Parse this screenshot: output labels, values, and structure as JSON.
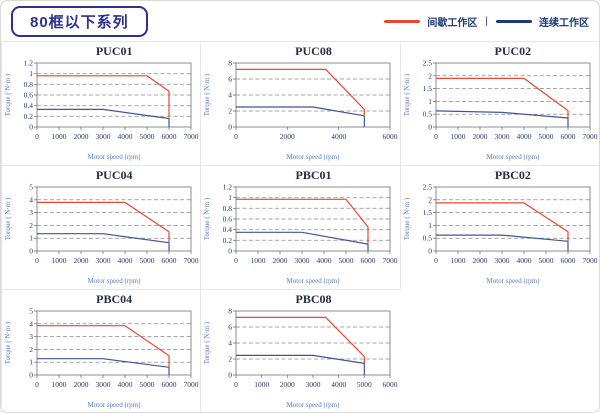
{
  "header": {
    "badge": "80框以下系列",
    "legend": {
      "items": [
        {
          "label": "间歇工作区",
          "color": "#e8492e"
        },
        {
          "label": "连续工作区",
          "color": "#1f3a78"
        }
      ],
      "separator": "|"
    }
  },
  "chart_data": [
    {
      "type": "line",
      "title": "PUC01",
      "xlabel": "Motor speed (rpm)",
      "ylabel": "Torque ( N·m )",
      "xlim": [
        0,
        7000
      ],
      "ylim": [
        0,
        1.2
      ],
      "xticks": [
        0,
        1000,
        2000,
        3000,
        4000,
        5000,
        6000,
        7000
      ],
      "yticks": [
        0,
        0.2,
        0.4,
        0.6,
        0.8,
        1,
        1.2
      ],
      "grid": "horizontal-dashed",
      "legend_position": "none",
      "series": [
        {
          "name": "间歇工作区",
          "color": "#e8492e",
          "points": [
            [
              0,
              0.96
            ],
            [
              5000,
              0.96
            ],
            [
              6000,
              0.67
            ],
            [
              6000,
              0.18
            ]
          ]
        },
        {
          "name": "连续工作区",
          "color": "#41549b",
          "points": [
            [
              0,
              0.33
            ],
            [
              3000,
              0.33
            ],
            [
              6000,
              0.16
            ],
            [
              6000,
              0
            ]
          ]
        }
      ]
    },
    {
      "type": "line",
      "title": "PUC08",
      "xlabel": "Motor speed (rpm)",
      "ylabel": "Torque ( N·m )",
      "xlim": [
        0,
        6000
      ],
      "ylim": [
        0,
        8
      ],
      "xticks": [
        0,
        2000,
        4000,
        6000
      ],
      "yticks": [
        0,
        2,
        4,
        6,
        8
      ],
      "grid": "horizontal-dashed",
      "legend_position": "none",
      "series": [
        {
          "name": "间歇工作区",
          "color": "#e8492e",
          "points": [
            [
              0,
              7.2
            ],
            [
              3500,
              7.2
            ],
            [
              5000,
              2.2
            ],
            [
              5000,
              1.5
            ]
          ]
        },
        {
          "name": "连续工作区",
          "color": "#41549b",
          "points": [
            [
              0,
              2.5
            ],
            [
              3000,
              2.5
            ],
            [
              5000,
              1.4
            ],
            [
              5000,
              0
            ]
          ]
        }
      ]
    },
    {
      "type": "line",
      "title": "PUC02",
      "xlabel": "Motor speed (rpm)",
      "ylabel": "Torque ( N·m )",
      "xlim": [
        0,
        7000
      ],
      "ylim": [
        0,
        2.5
      ],
      "xticks": [
        0,
        1000,
        2000,
        3000,
        4000,
        5000,
        6000,
        7000
      ],
      "yticks": [
        0,
        0.5,
        1,
        1.5,
        2,
        2.5
      ],
      "grid": "horizontal-dashed",
      "legend_position": "none",
      "series": [
        {
          "name": "间歇工作区",
          "color": "#e8492e",
          "points": [
            [
              0,
              1.9
            ],
            [
              4000,
              1.9
            ],
            [
              6000,
              0.64
            ],
            [
              6000,
              0.35
            ]
          ]
        },
        {
          "name": "连续工作区",
          "color": "#41549b",
          "points": [
            [
              0,
              0.63
            ],
            [
              3000,
              0.57
            ],
            [
              6000,
              0.35
            ],
            [
              6000,
              0
            ]
          ]
        }
      ]
    },
    {
      "type": "line",
      "title": "PUC04",
      "xlabel": "Motor speed (rpm)",
      "ylabel": "Torque ( N·m )",
      "xlim": [
        0,
        7000
      ],
      "ylim": [
        0,
        5
      ],
      "xticks": [
        0,
        1000,
        2000,
        3000,
        4000,
        5000,
        6000,
        7000
      ],
      "yticks": [
        0,
        1,
        2,
        3,
        4,
        5
      ],
      "grid": "horizontal-dashed",
      "legend_position": "none",
      "series": [
        {
          "name": "间歇工作区",
          "color": "#e8492e",
          "points": [
            [
              0,
              3.8
            ],
            [
              4000,
              3.8
            ],
            [
              6000,
              1.5
            ],
            [
              6000,
              0.7
            ]
          ]
        },
        {
          "name": "连续工作区",
          "color": "#41549b",
          "points": [
            [
              0,
              1.35
            ],
            [
              3000,
              1.35
            ],
            [
              6000,
              0.65
            ],
            [
              6000,
              0
            ]
          ]
        }
      ]
    },
    {
      "type": "line",
      "title": "PBC01",
      "xlabel": "Motor speed (rpm)",
      "ylabel": "Torque ( N·m )",
      "xlim": [
        0,
        7000
      ],
      "ylim": [
        0,
        1.2
      ],
      "xticks": [
        0,
        1000,
        2000,
        3000,
        4000,
        5000,
        6000,
        7000
      ],
      "yticks": [
        0,
        0.2,
        0.4,
        0.6,
        0.8,
        1,
        1.2
      ],
      "grid": "horizontal-dashed",
      "legend_position": "none",
      "series": [
        {
          "name": "间歇工作区",
          "color": "#e8492e",
          "points": [
            [
              0,
              0.97
            ],
            [
              5000,
              0.97
            ],
            [
              6000,
              0.45
            ],
            [
              6000,
              0.14
            ]
          ]
        },
        {
          "name": "连续工作区",
          "color": "#41549b",
          "points": [
            [
              0,
              0.35
            ],
            [
              3000,
              0.35
            ],
            [
              6000,
              0.13
            ],
            [
              6000,
              0
            ]
          ]
        }
      ]
    },
    {
      "type": "line",
      "title": "PBC02",
      "xlabel": "Motor speed (rpm)",
      "ylabel": "Torque ( N·m )",
      "xlim": [
        0,
        7000
      ],
      "ylim": [
        0,
        2.5
      ],
      "xticks": [
        0,
        1000,
        2000,
        3000,
        4000,
        5000,
        6000,
        7000
      ],
      "yticks": [
        0,
        0.5,
        1,
        1.5,
        2,
        2.5
      ],
      "grid": "horizontal-dashed",
      "legend_position": "none",
      "series": [
        {
          "name": "间歇工作区",
          "color": "#e8492e",
          "points": [
            [
              0,
              1.88
            ],
            [
              4000,
              1.88
            ],
            [
              6000,
              0.75
            ],
            [
              6000,
              0.4
            ]
          ]
        },
        {
          "name": "连续工作区",
          "color": "#41549b",
          "points": [
            [
              0,
              0.62
            ],
            [
              3000,
              0.62
            ],
            [
              6000,
              0.38
            ],
            [
              6000,
              0
            ]
          ]
        }
      ]
    },
    {
      "type": "line",
      "title": "PBC04",
      "xlabel": "Motor speed (rpm)",
      "ylabel": "Torque ( N·m )",
      "xlim": [
        0,
        7000
      ],
      "ylim": [
        0,
        5
      ],
      "xticks": [
        0,
        1000,
        2000,
        3000,
        4000,
        5000,
        6000,
        7000
      ],
      "yticks": [
        0,
        1,
        2,
        3,
        4,
        5
      ],
      "grid": "horizontal-dashed",
      "legend_position": "none",
      "series": [
        {
          "name": "间歇工作区",
          "color": "#e8492e",
          "points": [
            [
              0,
              3.85
            ],
            [
              4000,
              3.85
            ],
            [
              6000,
              1.5
            ],
            [
              6000,
              0.6
            ]
          ]
        },
        {
          "name": "连续工作区",
          "color": "#41549b",
          "points": [
            [
              0,
              1.27
            ],
            [
              3000,
              1.27
            ],
            [
              6000,
              0.6
            ],
            [
              6000,
              0
            ]
          ]
        }
      ]
    },
    {
      "type": "line",
      "title": "PBC08",
      "xlabel": "Motor speed (rpm)",
      "ylabel": "Torque ( N·m )",
      "xlim": [
        0,
        6000
      ],
      "ylim": [
        0,
        8
      ],
      "xticks": [
        0,
        1000,
        2000,
        3000,
        4000,
        5000,
        6000
      ],
      "yticks": [
        0,
        2,
        4,
        6,
        8
      ],
      "grid": "horizontal-dashed",
      "legend_position": "none",
      "series": [
        {
          "name": "间歇工作区",
          "color": "#e8492e",
          "points": [
            [
              0,
              7.2
            ],
            [
              3500,
              7.2
            ],
            [
              5000,
              2.3
            ],
            [
              5000,
              1.5
            ]
          ]
        },
        {
          "name": "连续工作区",
          "color": "#41549b",
          "points": [
            [
              0,
              2.45
            ],
            [
              3000,
              2.45
            ],
            [
              5000,
              1.45
            ],
            [
              5000,
              0
            ]
          ]
        }
      ]
    }
  ]
}
